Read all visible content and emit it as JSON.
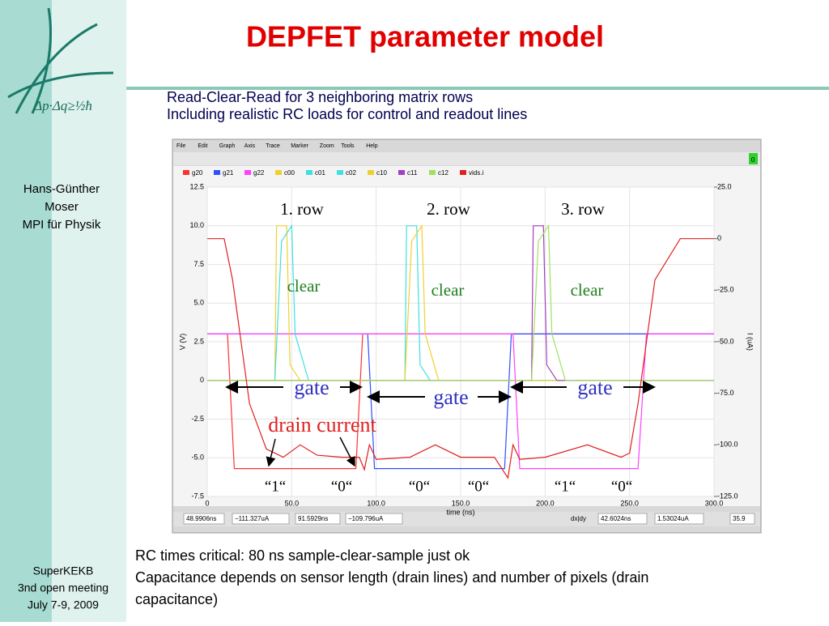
{
  "slide": {
    "title": "DEPFET parameter model",
    "subtitle": [
      "Read-Clear-Read for 3 neighboring matrix rows",
      "Including realistic RC loads for control and readout lines"
    ],
    "logo_formula": "Δp·Δq≥½ħ",
    "author": [
      "Hans-Günther",
      "Moser",
      "MPI für Physik"
    ],
    "event": [
      "SuperKEKB",
      "3nd open meeting",
      "July 7-9, 2009"
    ],
    "notes": [
      "RC times critical: 80 ns sample-clear-sample just ok",
      "Capacitance depends on sensor length (drain lines) and number of pixels (drain",
      "capacitance)"
    ]
  },
  "window": {
    "menu": [
      "File",
      "Edit",
      "Graph",
      "Axis",
      "Trace",
      "Marker",
      "Zoom",
      "Tools",
      "Help"
    ],
    "corner": "0",
    "status": [
      "48.9906ns",
      "−111.327uA",
      "91.5929ns",
      "−109.796uA",
      "dx|dy",
      "42.6024ns",
      "1.53024uA",
      "35.9"
    ]
  },
  "chart_data": {
    "type": "line",
    "xlabel": "time (ns)",
    "ylabel": "V (V)",
    "y2label": "I (uA)",
    "xlim": [
      0,
      300
    ],
    "xticks": [
      0,
      {
        "value": 50,
        "label": "50.0"
      },
      {
        "value": 100,
        "label": "100.0"
      },
      {
        "value": 150,
        "label": "150.0"
      },
      {
        "value": 200,
        "label": "200.0"
      },
      {
        "value": 250,
        "label": "250.0"
      },
      {
        "value": 300,
        "label": "300.0"
      }
    ],
    "ylim": [
      -7.5,
      12.5
    ],
    "yticks": [
      -7.5,
      {
        "value": -5,
        "label": "-5.0"
      },
      -2.5,
      0,
      2.5,
      {
        "value": 5,
        "label": "5.0"
      },
      7.5,
      {
        "value": 10,
        "label": "10.0"
      },
      12.5
    ],
    "y2lim": [
      -125,
      25
    ],
    "y2ticks": [
      {
        "value": 25,
        "label": "25.0"
      },
      0,
      {
        "value": -25,
        "label": "-25.0"
      },
      {
        "value": -50,
        "label": "-50.0"
      },
      {
        "value": -75,
        "label": "-75.0"
      },
      {
        "value": -100,
        "label": "-100.0"
      },
      {
        "value": -125,
        "label": "-125.0"
      }
    ],
    "grid": true,
    "series": [
      {
        "name": "g20",
        "color": "#ff3030",
        "x": [
          0,
          12,
          16,
          88,
          92,
          300
        ],
        "values": [
          3,
          3,
          -5.7,
          -5.7,
          3,
          3
        ]
      },
      {
        "name": "g21",
        "color": "#3050ff",
        "x": [
          0,
          95,
          99,
          176,
          180,
          300
        ],
        "values": [
          3,
          3,
          -5.7,
          -5.7,
          3,
          3
        ]
      },
      {
        "name": "g22",
        "color": "#ff40ff",
        "x": [
          0,
          181,
          185,
          255,
          260,
          300
        ],
        "values": [
          3,
          3,
          -5.7,
          -5.7,
          3,
          3
        ]
      },
      {
        "name": "c00",
        "color": "#f0d030",
        "x": [
          0,
          40,
          41,
          47,
          49,
          55,
          300
        ],
        "values": [
          0,
          0,
          10,
          10,
          1,
          0,
          0
        ]
      },
      {
        "name": "c01",
        "color": "#40e0e0",
        "x": [
          0,
          40,
          44,
          50,
          52,
          60,
          300
        ],
        "values": [
          0,
          0,
          9,
          10,
          3,
          0,
          0
        ]
      },
      {
        "name": "c02",
        "color": "#40e0e0",
        "x": [
          0,
          117,
          118,
          124,
          126,
          132,
          300
        ],
        "values": [
          0,
          0,
          10,
          10,
          1,
          0,
          0
        ]
      },
      {
        "name": "c10",
        "color": "#f0d030",
        "x": [
          0,
          117,
          121,
          127,
          129,
          137,
          300
        ],
        "values": [
          0,
          0,
          9,
          10,
          3,
          0,
          0
        ]
      },
      {
        "name": "c11",
        "color": "#a040c0",
        "x": [
          0,
          192,
          193,
          199,
          201,
          207,
          300
        ],
        "values": [
          0,
          0,
          10,
          10,
          1,
          0,
          0
        ]
      },
      {
        "name": "c12",
        "color": "#a0e060",
        "x": [
          0,
          192,
          196,
          202,
          204,
          212,
          300
        ],
        "values": [
          0,
          0,
          9,
          10,
          3,
          0,
          0
        ]
      },
      {
        "name": "vids.i",
        "color": "#e02020",
        "axis": "y2",
        "x": [
          0,
          10,
          15,
          25,
          35,
          45,
          55,
          65,
          80,
          90,
          93,
          96,
          100,
          120,
          135,
          150,
          170,
          178,
          181,
          185,
          200,
          225,
          245,
          250,
          255,
          265,
          280,
          300
        ],
        "values": [
          0,
          0,
          -20,
          -80,
          -102,
          -106,
          -100,
          -105,
          -106,
          -106,
          -112,
          -100,
          -107,
          -106,
          -100,
          -106,
          -106,
          -116,
          -100,
          -107,
          -106,
          -100,
          -106,
          -104,
          -80,
          -20,
          0,
          0
        ]
      }
    ],
    "annotations": [
      {
        "text": "1. row",
        "color": "#000000"
      },
      {
        "text": "2. row",
        "color": "#000000"
      },
      {
        "text": "3. row",
        "color": "#000000"
      },
      {
        "text": "clear",
        "color": "#208020"
      },
      {
        "text": "clear",
        "color": "#208020"
      },
      {
        "text": "clear",
        "color": "#208020"
      },
      {
        "text": "gate",
        "color": "#3030c0"
      },
      {
        "text": "gate",
        "color": "#3030c0"
      },
      {
        "text": "gate",
        "color": "#3030c0"
      },
      {
        "text": "drain current",
        "color": "#e02020"
      },
      {
        "text": "“1“",
        "color": "#000000"
      },
      {
        "text": "“0“",
        "color": "#000000"
      },
      {
        "text": "“0“",
        "color": "#000000"
      },
      {
        "text": "“0“",
        "color": "#000000"
      },
      {
        "text": "“1“",
        "color": "#000000"
      },
      {
        "text": "“0“",
        "color": "#000000"
      }
    ]
  }
}
